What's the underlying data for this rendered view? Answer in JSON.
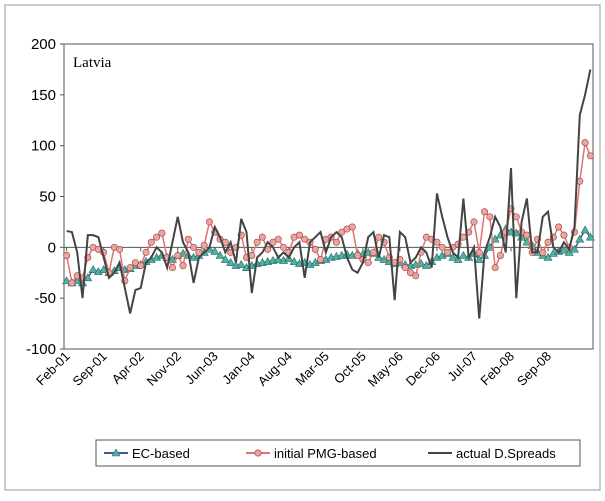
{
  "chart_data": {
    "type": "line",
    "title": "Latvia",
    "categories": [
      "Feb-01",
      null,
      null,
      null,
      null,
      null,
      null,
      "Sep-01",
      null,
      null,
      null,
      null,
      null,
      null,
      "Apr-02",
      null,
      null,
      null,
      null,
      null,
      null,
      "Nov-02",
      null,
      null,
      null,
      null,
      null,
      null,
      "Jun-03",
      null,
      null,
      null,
      null,
      null,
      null,
      "Jan-04",
      null,
      null,
      null,
      null,
      null,
      null,
      "Aug-04",
      null,
      null,
      null,
      null,
      null,
      null,
      "Mar-05",
      null,
      null,
      null,
      null,
      null,
      null,
      "Oct-05",
      null,
      null,
      null,
      null,
      null,
      null,
      "May-06",
      null,
      null,
      null,
      null,
      null,
      null,
      "Dec-06",
      null,
      null,
      null,
      null,
      null,
      null,
      "Jul-07",
      null,
      null,
      null,
      null,
      null,
      null,
      "Feb-08",
      null,
      null,
      null,
      null,
      null,
      null,
      "Sep-08",
      null,
      null,
      null,
      null,
      null,
      null,
      null,
      null
    ],
    "series": [
      {
        "name": "EC-based",
        "color": "#3b5b8a",
        "marker": "triangle",
        "marker_color": "#4fb0a5",
        "values": [
          -33,
          -35,
          -33,
          -35,
          -30,
          -22,
          -24,
          -22,
          -25,
          -23,
          -20,
          -22,
          -21,
          -18,
          -17,
          -14,
          -12,
          -10,
          -8,
          -10,
          -12,
          -8,
          -6,
          -8,
          -10,
          -8,
          -5,
          -2,
          -4,
          -8,
          -12,
          -15,
          -18,
          -17,
          -20,
          -18,
          -16,
          -15,
          -14,
          -13,
          -12,
          -13,
          -11,
          -14,
          -16,
          -15,
          -17,
          -15,
          -13,
          -12,
          -10,
          -9,
          -8,
          -7,
          -8,
          -6,
          -7,
          -5,
          -6,
          -10,
          -12,
          -14,
          -16,
          -15,
          -17,
          -18,
          -17,
          -16,
          -18,
          -14,
          -10,
          -8,
          -6,
          -10,
          -12,
          -8,
          -10,
          -6,
          -12,
          -8,
          0,
          8,
          12,
          18,
          15,
          14,
          10,
          5,
          2,
          -5,
          -8,
          -10,
          -6,
          -4,
          -3,
          -5,
          -2,
          8,
          17,
          10
        ]
      },
      {
        "name": "initial PMG-based",
        "color": "#e07272",
        "marker": "circle",
        "marker_color": "#eaa5a0",
        "values": [
          -8,
          -35,
          -28,
          -30,
          -10,
          0,
          -2,
          -5,
          -25,
          0,
          -2,
          -33,
          -20,
          -15,
          -18,
          -5,
          5,
          10,
          14,
          -10,
          -20,
          -8,
          -18,
          8,
          0,
          -5,
          2,
          25,
          15,
          8,
          5,
          -5,
          0,
          12,
          -10,
          -8,
          5,
          10,
          -2,
          5,
          8,
          0,
          -5,
          10,
          12,
          8,
          5,
          -2,
          -12,
          8,
          10,
          5,
          15,
          18,
          20,
          -8,
          -12,
          -15,
          -5,
          10,
          5,
          -10,
          -15,
          -12,
          -20,
          -25,
          -28,
          -5,
          10,
          8,
          5,
          0,
          -5,
          0,
          3,
          10,
          15,
          25,
          -5,
          35,
          30,
          -20,
          -8,
          15,
          38,
          30,
          15,
          12,
          -5,
          8,
          -5,
          5,
          10,
          20,
          12,
          0,
          15,
          65,
          103,
          90
        ]
      },
      {
        "name": "actual D.Spreads",
        "color": "#444444",
        "marker": "none",
        "values": [
          16,
          15,
          -5,
          -50,
          12,
          12,
          10,
          -10,
          -30,
          -25,
          -15,
          -40,
          -65,
          -42,
          -40,
          -15,
          -10,
          0,
          -5,
          -20,
          5,
          30,
          5,
          -5,
          -35,
          -10,
          -5,
          0,
          20,
          10,
          -5,
          5,
          -15,
          28,
          15,
          -45,
          -10,
          -5,
          5,
          0,
          -10,
          -5,
          -10,
          0,
          5,
          -30,
          5,
          10,
          15,
          -5,
          10,
          15,
          10,
          -10,
          -22,
          -25,
          -15,
          10,
          15,
          -10,
          12,
          10,
          -52,
          15,
          10,
          -15,
          -10,
          0,
          -5,
          -20,
          53,
          30,
          10,
          -5,
          -10,
          48,
          -10,
          0,
          -70,
          -5,
          10,
          30,
          20,
          -5,
          78,
          -50,
          25,
          48,
          -5,
          -5,
          30,
          35,
          0,
          -5,
          5,
          -2,
          20,
          130,
          150,
          175
        ]
      }
    ],
    "ylim": [
      -100,
      200
    ],
    "yticks": [
      -100,
      -50,
      0,
      50,
      100,
      150,
      200
    ],
    "grid": false,
    "legend": "bottom"
  }
}
